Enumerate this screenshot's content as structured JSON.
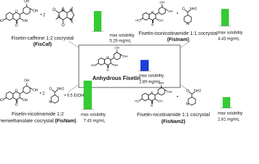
{
  "atoms": {
    "ho": "HO",
    "oh": "OH",
    "o": "O",
    "n": "N",
    "nh2": "NH2"
  },
  "metric": "max solubility",
  "center": {
    "name": "Anhydrous Fisetin",
    "solubility": 2.89,
    "solubility_label": "2.89 mg/mL",
    "color": "#1c3fd6"
  },
  "cocrystals": [
    {
      "name": "Fisetin-caffeine 1:2 cocrystal",
      "code": "(FisCaf)",
      "ratio": "• 2",
      "solubility": 5.29,
      "solubility_label": "5.29 mg/mL",
      "color": "#33cc33"
    },
    {
      "name": "Fisetin-isonicotinamide 1:1 cocrystal",
      "code": "(FisInam)",
      "ratio": "•",
      "solubility": 4.43,
      "solubility_label": "4.43 mg/mL",
      "color": "#33cc33"
    },
    {
      "name": "Fisetin-nicotinamide 1:2",
      "name2": "hemiethanolate cocrystal",
      "code": "(FisNam)",
      "ratio": "• 2",
      "solvent": "• 0.5 EtOH",
      "solubility": 7.43,
      "solubility_label": "7.43 mg/mL",
      "color": "#33cc33"
    },
    {
      "name": "Fisetin-nicotinamide 1:1 cocrystal",
      "code": "(FisNam2)",
      "ratio": "•",
      "solubility": 2.81,
      "solubility_label": "2.81 mg/mL",
      "color": "#33cc33"
    }
  ]
}
